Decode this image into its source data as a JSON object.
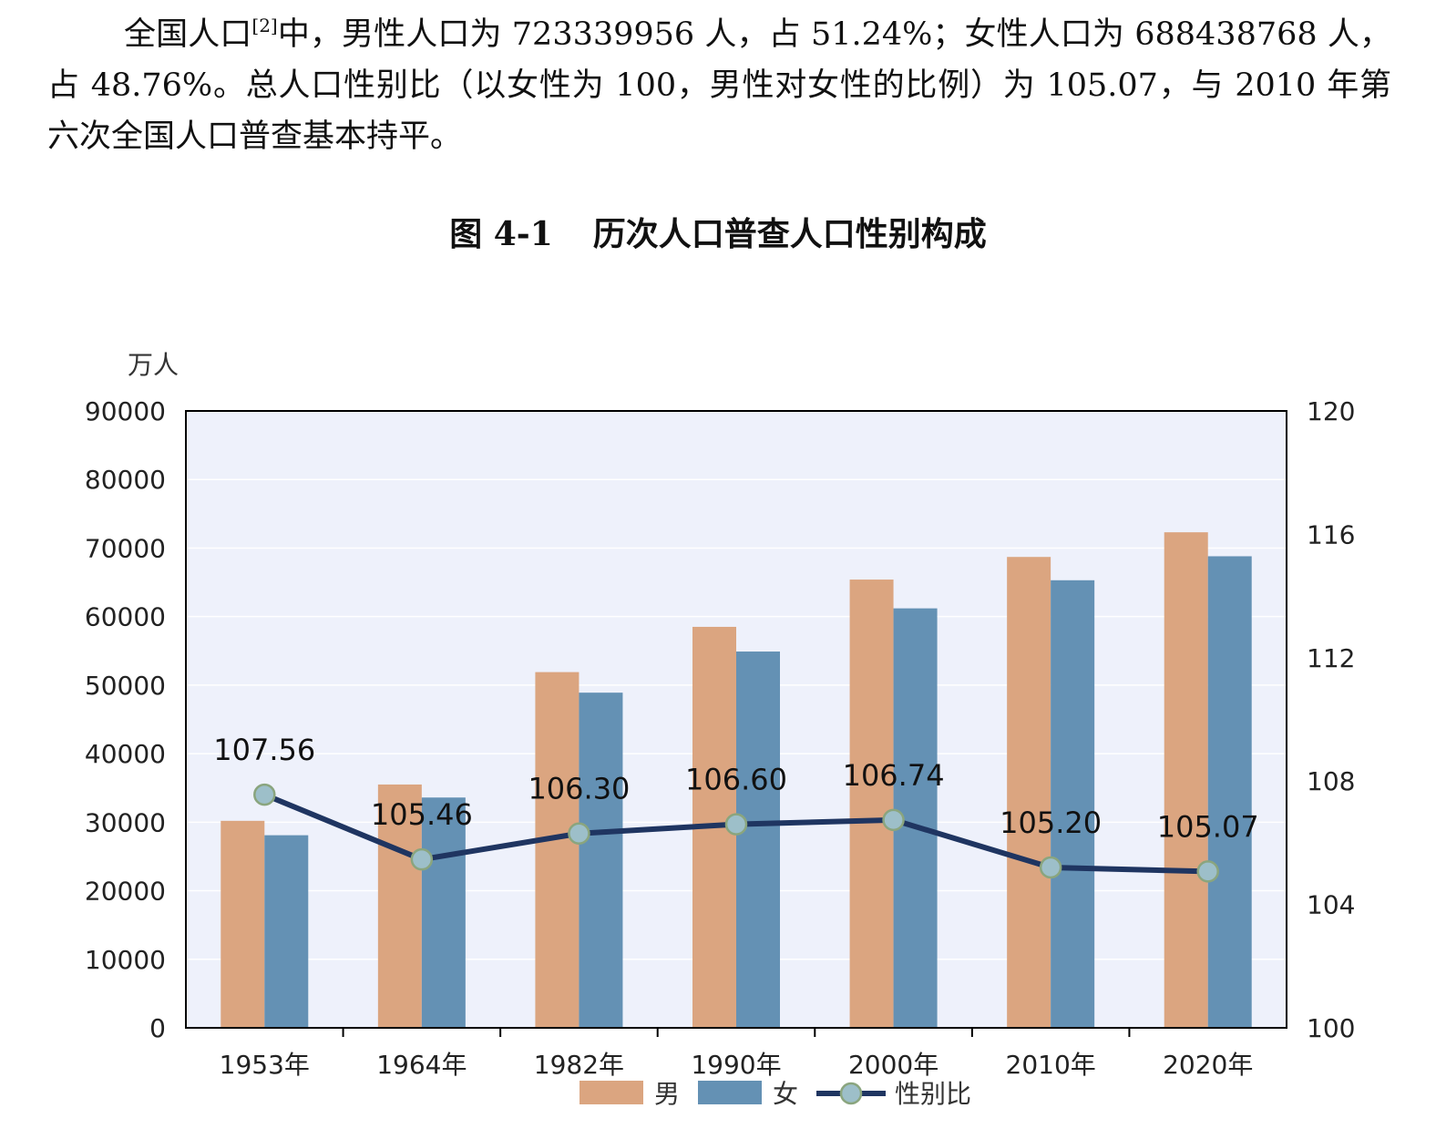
{
  "paragraph": {
    "part1": "全国人口",
    "footnote": "[2]",
    "part2": "中，男性人口为 723339956 人，占 51.24%；女性人口为 688438768 人，占 48.76%。总人口性别比（以女性为 100，男性对女性的比例）为 105.07，与 2010 年第六次全国人口普查基本持平。"
  },
  "figure": {
    "number": "图 4-1",
    "title": "历次人口普查人口性别构成"
  },
  "chart_data": {
    "type": "bar",
    "categories": [
      "1953年",
      "1964年",
      "1982年",
      "1990年",
      "2000年",
      "2010年",
      "2020年"
    ],
    "series": [
      {
        "name": "男",
        "type": "bar",
        "axis": "left",
        "color": "#DBA580",
        "values": [
          30200,
          35500,
          51900,
          58500,
          65400,
          68700,
          72300
        ]
      },
      {
        "name": "女",
        "type": "bar",
        "axis": "left",
        "color": "#6491B4",
        "values": [
          28100,
          33600,
          48900,
          54900,
          61200,
          65300,
          68800
        ]
      },
      {
        "name": "性别比",
        "type": "line",
        "axis": "right",
        "color": "#1F3561",
        "marker_color": "#9DBFC9",
        "values": [
          107.56,
          105.46,
          106.3,
          106.6,
          106.74,
          105.2,
          105.07
        ],
        "labels": [
          "107.56",
          "105.46",
          "106.30",
          "106.60",
          "106.74",
          "105.20",
          "105.07"
        ]
      }
    ],
    "y_left": {
      "label": "万人",
      "min": 0,
      "max": 90000,
      "ticks": [
        "0",
        "10000",
        "20000",
        "30000",
        "40000",
        "50000",
        "60000",
        "70000",
        "80000",
        "90000"
      ]
    },
    "y_right": {
      "min": 100,
      "max": 120,
      "ticks": [
        "100",
        "104",
        "108",
        "112",
        "116",
        "120"
      ]
    },
    "legend": {
      "position": "bottom"
    },
    "plot_background": "#EEF1FB",
    "gridlines": true
  }
}
